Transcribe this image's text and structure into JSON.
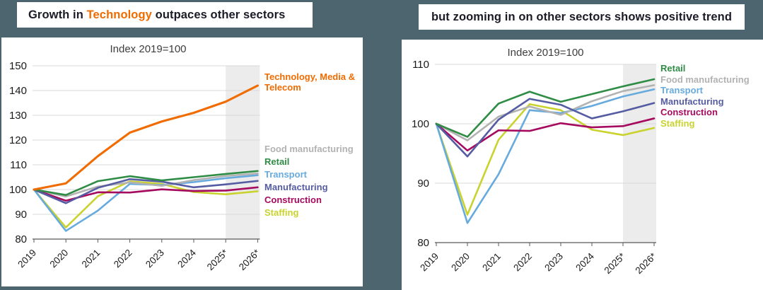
{
  "page": {
    "background_color": "#4D656E",
    "accent_color": "#F06B00"
  },
  "headers": {
    "left": {
      "prefix": "Growth in ",
      "highlight": "Technology",
      "suffix": " outpaces other sectors",
      "highlight_color": "#F06B00"
    },
    "right": {
      "text": "but zooming in on other sectors shows positive trend"
    }
  },
  "chart_data": [
    {
      "type": "line",
      "title": "Index 2019=100",
      "categories": [
        "2019",
        "2020",
        "2021",
        "2022",
        "2023",
        "2024",
        "2025*",
        "2026*"
      ],
      "ylim": [
        80,
        150
      ],
      "yticks": [
        80,
        90,
        100,
        110,
        120,
        130,
        140,
        150
      ],
      "grid": "horizontal",
      "forecast_start_category": "2025*",
      "forecast_shade_color": "#ECECEC",
      "legend_position": "right",
      "legend_order": [
        "Technology, Media & Telecom",
        "Food manufacturing",
        "Retail",
        "Transport",
        "Manufacturing",
        "Construction",
        "Staffing"
      ],
      "draw_order": [
        "Staffing",
        "Transport",
        "Food manufacturing",
        "Construction",
        "Manufacturing",
        "Retail",
        "Technology, Media & Telecom"
      ],
      "series": [
        {
          "name": "Technology, Media & Telecom",
          "color": "#F06B00",
          "values": [
            100,
            102.5,
            113.5,
            123,
            127.5,
            131,
            135.5,
            142
          ]
        },
        {
          "name": "Food manufacturing",
          "color": "#B2B2B2",
          "values": [
            100,
            97.2,
            101.2,
            102.9,
            101.5,
            103.8,
            105.5,
            106.5
          ]
        },
        {
          "name": "Retail",
          "color": "#2F8C45",
          "values": [
            100,
            97.8,
            103.4,
            105.4,
            103.7,
            105,
            106.3,
            107.5
          ]
        },
        {
          "name": "Transport",
          "color": "#66AADE",
          "values": [
            100,
            83.3,
            91.5,
            102.3,
            101.8,
            103,
            104.6,
            105.8
          ]
        },
        {
          "name": "Manufacturing",
          "color": "#555CA2",
          "values": [
            100,
            94.5,
            100.7,
            104.2,
            103.2,
            100.9,
            102.1,
            103.5
          ]
        },
        {
          "name": "Construction",
          "color": "#A60A5F",
          "values": [
            100,
            95.5,
            98.9,
            98.8,
            100.1,
            99.4,
            99.6,
            100.9
          ]
        },
        {
          "name": "Staffing",
          "color": "#C9D22E",
          "values": [
            100,
            84.7,
            97.3,
            103.3,
            102.3,
            99,
            98.1,
            99.3
          ]
        }
      ]
    },
    {
      "type": "line",
      "title": "Index 2019=100",
      "categories": [
        "2019",
        "2020",
        "2021",
        "2022",
        "2023",
        "2024",
        "2025*",
        "2026*"
      ],
      "ylim": [
        80,
        110
      ],
      "yticks": [
        80,
        90,
        100,
        110
      ],
      "grid": "horizontal",
      "forecast_start_category": "2025*",
      "forecast_shade_color": "#ECECEC",
      "legend_position": "right",
      "legend_order": [
        "Retail",
        "Food manufacturing",
        "Transport",
        "Manufacturing",
        "Construction",
        "Staffing"
      ],
      "draw_order": [
        "Staffing",
        "Transport",
        "Food manufacturing",
        "Construction",
        "Manufacturing",
        "Retail"
      ],
      "series": [
        {
          "name": "Retail",
          "color": "#2F8C45",
          "values": [
            100,
            97.8,
            103.4,
            105.4,
            103.7,
            105,
            106.3,
            107.5
          ]
        },
        {
          "name": "Food manufacturing",
          "color": "#B2B2B2",
          "values": [
            100,
            97.2,
            101.2,
            102.9,
            101.5,
            103.8,
            105.5,
            106.5
          ]
        },
        {
          "name": "Transport",
          "color": "#66AADE",
          "values": [
            100,
            83.3,
            91.5,
            102.3,
            101.8,
            103,
            104.6,
            105.8
          ]
        },
        {
          "name": "Manufacturing",
          "color": "#555CA2",
          "values": [
            100,
            94.5,
            100.7,
            104.2,
            103.2,
            100.9,
            102.1,
            103.5
          ]
        },
        {
          "name": "Construction",
          "color": "#A60A5F",
          "values": [
            100,
            95.5,
            98.9,
            98.8,
            100.1,
            99.4,
            99.6,
            100.9
          ]
        },
        {
          "name": "Staffing",
          "color": "#C9D22E",
          "values": [
            100,
            84.7,
            97.3,
            103.3,
            102.3,
            99,
            98.1,
            99.3
          ]
        }
      ]
    }
  ]
}
